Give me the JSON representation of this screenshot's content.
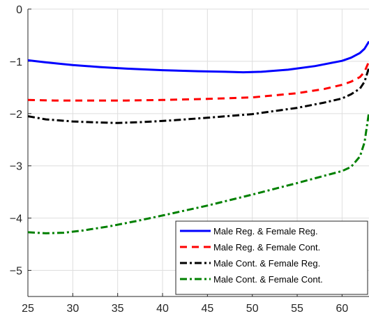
{
  "chart_data": {
    "type": "line",
    "title": "",
    "xlabel": "",
    "ylabel": "",
    "xlim": [
      25,
      63
    ],
    "ylim": [
      -5.5,
      0
    ],
    "xticks": [
      25,
      30,
      35,
      40,
      45,
      50,
      55,
      60
    ],
    "yticks": [
      0,
      -1,
      -2,
      -3,
      -4,
      -5
    ],
    "xtick_labels": [
      "25",
      "30",
      "35",
      "40",
      "45",
      "50",
      "55",
      "60"
    ],
    "ytick_labels": [
      "0",
      "−1",
      "−2",
      "−3",
      "−4",
      "−5"
    ],
    "grid": true,
    "legend_position": "bottom-right",
    "series": [
      {
        "name": "Male Reg. & Female Reg.",
        "color": "#0000ff",
        "style": "solid",
        "x": [
          25,
          27,
          30,
          33,
          36,
          40,
          44,
          47,
          49,
          51,
          54,
          57,
          60,
          61,
          62,
          62.5,
          63
        ],
        "y": [
          -0.98,
          -1.02,
          -1.07,
          -1.11,
          -1.14,
          -1.17,
          -1.19,
          -1.2,
          -1.21,
          -1.2,
          -1.16,
          -1.09,
          -0.99,
          -0.93,
          -0.84,
          -0.76,
          -0.62
        ]
      },
      {
        "name": "Male Reg. & Female Cont.",
        "color": "#ff0000",
        "style": "dashed",
        "x": [
          25,
          28,
          32,
          36,
          40,
          45,
          50,
          55,
          58,
          60,
          61,
          62,
          62.5,
          63
        ],
        "y": [
          -1.74,
          -1.75,
          -1.75,
          -1.75,
          -1.74,
          -1.72,
          -1.69,
          -1.61,
          -1.53,
          -1.45,
          -1.39,
          -1.3,
          -1.2,
          -1.0
        ]
      },
      {
        "name": "Male Cont. & Female Reg.",
        "color": "#000000",
        "style": "dashdot",
        "x": [
          25,
          27,
          30,
          33,
          35,
          38,
          41,
          45,
          50,
          55,
          58,
          60,
          61,
          62,
          62.5,
          63
        ],
        "y": [
          -2.05,
          -2.11,
          -2.15,
          -2.17,
          -2.18,
          -2.16,
          -2.13,
          -2.08,
          -2.01,
          -1.89,
          -1.79,
          -1.71,
          -1.63,
          -1.52,
          -1.39,
          -1.12
        ]
      },
      {
        "name": "Male Cont. & Female Cont.",
        "color": "#008000",
        "style": "dashdot",
        "x": [
          25,
          27,
          29,
          31,
          34,
          37,
          40,
          45,
          50,
          55,
          58,
          60,
          61,
          62,
          62.5,
          63
        ],
        "y": [
          -4.27,
          -4.29,
          -4.28,
          -4.24,
          -4.16,
          -4.06,
          -3.95,
          -3.76,
          -3.55,
          -3.33,
          -3.19,
          -3.1,
          -3.02,
          -2.82,
          -2.55,
          -1.97
        ]
      }
    ]
  }
}
